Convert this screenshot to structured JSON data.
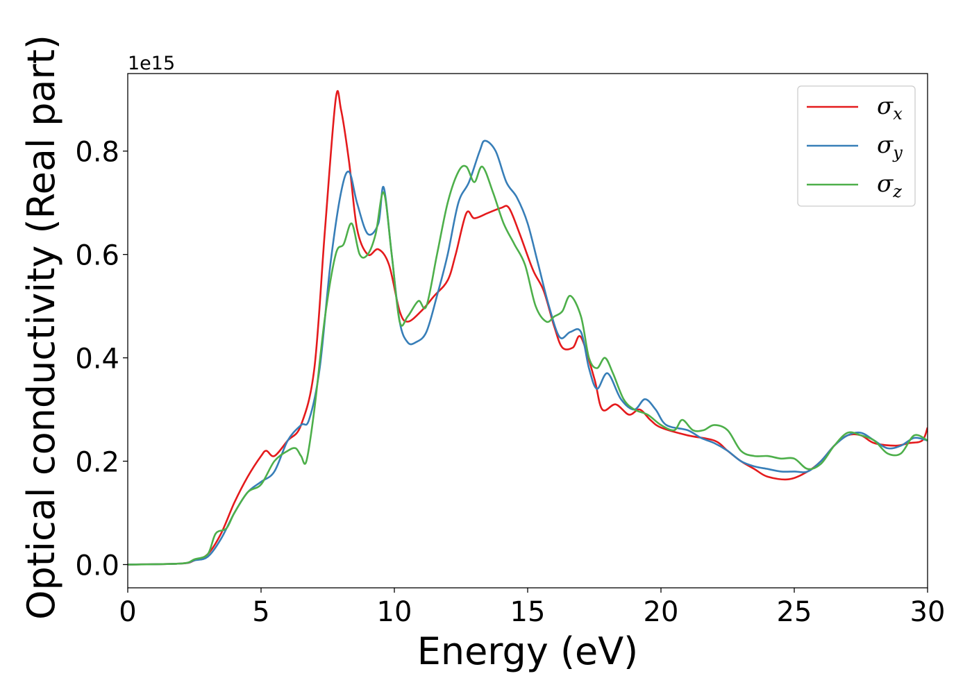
{
  "chart_data": {
    "type": "line",
    "title": "",
    "xlabel": "Energy (eV)",
    "ylabel": "Optical conductivity (Real part)",
    "y_offset_label": "1e15",
    "xlim": [
      0,
      30
    ],
    "ylim": [
      -0.045,
      0.95
    ],
    "xticks": [
      0,
      5,
      10,
      15,
      20,
      25,
      30
    ],
    "xtick_labels": [
      "0",
      "5",
      "10",
      "15",
      "20",
      "25",
      "30"
    ],
    "yticks": [
      0.0,
      0.2,
      0.4,
      0.6,
      0.8
    ],
    "ytick_labels": [
      "0.0",
      "0.2",
      "0.4",
      "0.6",
      "0.8"
    ],
    "grid": false,
    "legend_position": "top-right",
    "series": [
      {
        "name": "σx",
        "symbol": "σ",
        "subscript": "x",
        "color": "#e41a1c",
        "x": [
          0,
          2,
          2.5,
          3,
          3.5,
          4,
          4.5,
          5,
          5.2,
          5.5,
          6,
          6.5,
          7,
          7.4,
          7.8,
          8.0,
          8.3,
          8.6,
          9.0,
          9.4,
          9.8,
          10.2,
          10.5,
          11.0,
          11.5,
          12.0,
          12.3,
          12.7,
          13.0,
          13.5,
          14.0,
          14.3,
          14.7,
          15.2,
          15.6,
          16.0,
          16.3,
          16.7,
          17.0,
          17.5,
          17.8,
          18.3,
          18.8,
          19.2,
          19.6,
          20,
          21,
          22,
          22.5,
          23,
          23.5,
          24,
          24.8,
          25.5,
          26,
          26.5,
          27,
          27.5,
          28,
          28.8,
          29.3,
          29.8,
          30
        ],
        "y": [
          0.0,
          0.002,
          0.008,
          0.02,
          0.06,
          0.12,
          0.17,
          0.21,
          0.22,
          0.21,
          0.24,
          0.27,
          0.38,
          0.65,
          0.9,
          0.88,
          0.78,
          0.65,
          0.6,
          0.61,
          0.58,
          0.49,
          0.47,
          0.49,
          0.52,
          0.55,
          0.6,
          0.68,
          0.67,
          0.68,
          0.69,
          0.69,
          0.64,
          0.57,
          0.53,
          0.46,
          0.42,
          0.42,
          0.44,
          0.36,
          0.3,
          0.31,
          0.29,
          0.3,
          0.28,
          0.265,
          0.25,
          0.24,
          0.22,
          0.2,
          0.185,
          0.17,
          0.165,
          0.18,
          0.2,
          0.23,
          0.25,
          0.25,
          0.235,
          0.23,
          0.235,
          0.24,
          0.265
        ]
      },
      {
        "name": "σy",
        "symbol": "σ",
        "subscript": "y",
        "color": "#377eb8",
        "x": [
          0,
          2,
          2.5,
          3,
          3.5,
          4,
          4.5,
          5,
          5.5,
          6,
          6.5,
          6.8,
          7.2,
          7.6,
          8.0,
          8.3,
          8.6,
          9.0,
          9.4,
          9.6,
          9.9,
          10.2,
          10.5,
          10.8,
          11.2,
          11.6,
          12.0,
          12.4,
          12.8,
          13.2,
          13.4,
          13.8,
          14.2,
          14.6,
          15.0,
          15.4,
          15.8,
          16.2,
          16.6,
          17.0,
          17.3,
          17.6,
          18.0,
          18.5,
          19.0,
          19.4,
          19.8,
          20.2,
          21,
          21.5,
          22,
          22.5,
          23,
          23.5,
          24,
          24.5,
          25,
          25.5,
          26,
          26.5,
          27,
          27.5,
          28,
          28.5,
          29,
          29.5,
          30
        ],
        "y": [
          0.0,
          0.002,
          0.008,
          0.015,
          0.05,
          0.1,
          0.14,
          0.16,
          0.18,
          0.24,
          0.27,
          0.28,
          0.38,
          0.58,
          0.72,
          0.76,
          0.7,
          0.64,
          0.66,
          0.73,
          0.6,
          0.47,
          0.43,
          0.43,
          0.45,
          0.52,
          0.6,
          0.7,
          0.74,
          0.8,
          0.82,
          0.8,
          0.74,
          0.71,
          0.66,
          0.58,
          0.5,
          0.44,
          0.45,
          0.45,
          0.38,
          0.34,
          0.37,
          0.32,
          0.3,
          0.32,
          0.3,
          0.27,
          0.26,
          0.245,
          0.235,
          0.22,
          0.2,
          0.19,
          0.185,
          0.18,
          0.18,
          0.18,
          0.2,
          0.23,
          0.25,
          0.255,
          0.24,
          0.225,
          0.23,
          0.245,
          0.24
        ]
      },
      {
        "name": "σz",
        "symbol": "σ",
        "subscript": "z",
        "color": "#4daf4a",
        "x": [
          0,
          2,
          2.5,
          3,
          3.3,
          3.7,
          4,
          4.5,
          5,
          5.5,
          6,
          6.3,
          6.5,
          6.7,
          7.0,
          7.4,
          7.8,
          8.1,
          8.4,
          8.7,
          9.0,
          9.3,
          9.6,
          9.9,
          10.2,
          10.5,
          10.9,
          11.2,
          11.6,
          12.0,
          12.4,
          12.7,
          13.0,
          13.3,
          13.7,
          14.1,
          14.5,
          14.9,
          15.3,
          15.7,
          16.0,
          16.3,
          16.6,
          17.0,
          17.3,
          17.6,
          17.9,
          18.2,
          18.6,
          19.0,
          19.5,
          20.0,
          20.5,
          20.8,
          21.2,
          21.6,
          22.0,
          22.5,
          23.0,
          23.5,
          24.0,
          24.5,
          25.0,
          25.5,
          26.0,
          26.5,
          27.0,
          27.5,
          28.0,
          28.5,
          29.0,
          29.5,
          30
        ],
        "y": [
          0.0,
          0.002,
          0.01,
          0.02,
          0.06,
          0.07,
          0.1,
          0.14,
          0.155,
          0.2,
          0.22,
          0.225,
          0.21,
          0.2,
          0.3,
          0.48,
          0.6,
          0.62,
          0.66,
          0.6,
          0.6,
          0.64,
          0.72,
          0.6,
          0.47,
          0.48,
          0.51,
          0.5,
          0.6,
          0.7,
          0.76,
          0.77,
          0.74,
          0.77,
          0.72,
          0.66,
          0.62,
          0.58,
          0.5,
          0.47,
          0.48,
          0.49,
          0.52,
          0.48,
          0.4,
          0.38,
          0.4,
          0.37,
          0.32,
          0.3,
          0.29,
          0.27,
          0.26,
          0.28,
          0.26,
          0.26,
          0.27,
          0.26,
          0.22,
          0.21,
          0.21,
          0.205,
          0.205,
          0.185,
          0.195,
          0.23,
          0.255,
          0.25,
          0.24,
          0.215,
          0.215,
          0.25,
          0.24
        ]
      }
    ]
  }
}
